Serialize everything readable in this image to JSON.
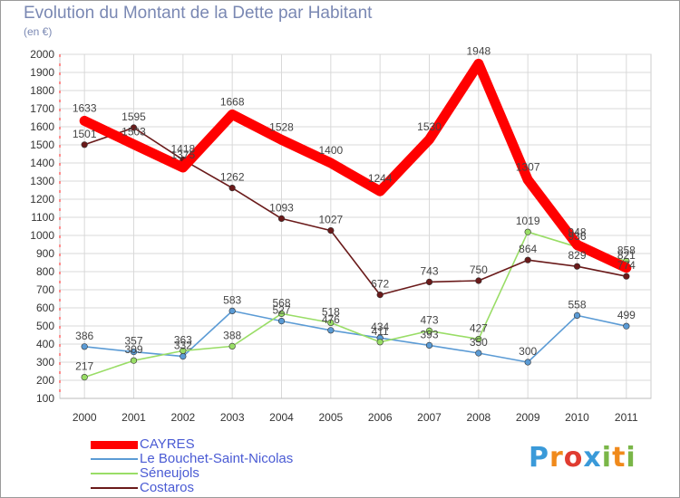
{
  "title": "Evolution du Montant de la Dette par Habitant",
  "unit": "(en €)",
  "logo": {
    "text": "Proxiti",
    "letters": [
      "P",
      "r",
      "o",
      "x",
      "i",
      "t",
      "i"
    ],
    "colors": [
      "#3a9ad9",
      "#f08a1c",
      "#e03c31",
      "#3a9ad9",
      "#7ab648",
      "#f08a1c",
      "#7ab648"
    ]
  },
  "chart_data": {
    "type": "line",
    "title": "Evolution du Montant de la Dette par Habitant",
    "ylabel": "(en €)",
    "xlabel": "",
    "ylim": [
      100,
      2000
    ],
    "yticks": [
      100,
      200,
      300,
      400,
      500,
      600,
      700,
      800,
      900,
      1000,
      1100,
      1200,
      1300,
      1400,
      1500,
      1600,
      1700,
      1800,
      1900,
      2000
    ],
    "categories": [
      "2000",
      "2001",
      "2002",
      "2003",
      "2004",
      "2005",
      "2006",
      "2007",
      "2008",
      "2009",
      "2010",
      "2011"
    ],
    "grid": true,
    "legend": "bottom-left",
    "series": [
      {
        "name": "CAYRES",
        "color": "#ff0000",
        "emphasis": true,
        "values": [
          1633,
          1503,
          1375,
          1668,
          1528,
          1400,
          1244,
          1530,
          1948,
          1307,
          948,
          821
        ],
        "labels": [
          "1633",
          "1503",
          "1375",
          "1668",
          "1528",
          "1400",
          "1244",
          "1530",
          "1948",
          "1307",
          "948",
          "821"
        ]
      },
      {
        "name": "Le Bouchet-Saint-Nicolas",
        "color": "#5b9bd5",
        "emphasis": false,
        "values": [
          386,
          357,
          332,
          583,
          527,
          476,
          434,
          393,
          350,
          300,
          558,
          499
        ],
        "labels": [
          "386",
          "357",
          "332",
          "583",
          "527",
          "476",
          "434",
          "393",
          "350",
          "300",
          "558",
          "499"
        ]
      },
      {
        "name": "Séneujols",
        "color": "#99dd66",
        "emphasis": false,
        "values": [
          217,
          309,
          363,
          388,
          568,
          518,
          411,
          473,
          427,
          1019,
          936,
          858
        ],
        "labels": [
          "217",
          "309",
          "363",
          "388",
          "568",
          "518",
          "411",
          "473",
          "427",
          "1019",
          "936",
          "858"
        ]
      },
      {
        "name": "Costaros",
        "color": "#6a1a1a",
        "emphasis": false,
        "values": [
          1501,
          1595,
          1418,
          1262,
          1093,
          1027,
          672,
          743,
          750,
          864,
          829,
          774
        ],
        "labels": [
          "1501",
          "1595",
          "1418",
          "1262",
          "1093",
          "1027",
          "672",
          "743",
          "750",
          "864",
          "829",
          "774"
        ]
      }
    ]
  }
}
